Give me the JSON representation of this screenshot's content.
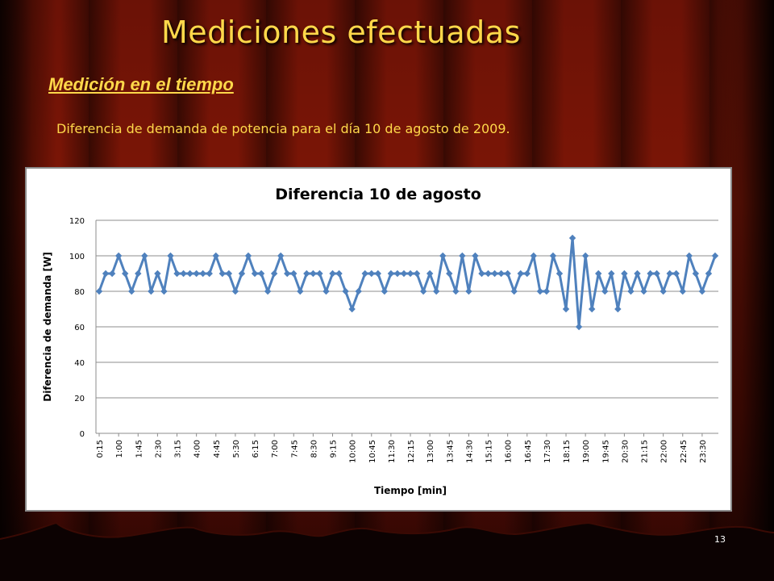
{
  "slide": {
    "title": "Mediciones efectuadas",
    "subtitle": "Medición en el tiempo",
    "description": "Diferencia de demanda de potencia para el día 10 de agosto de 2009.",
    "page_number": "13"
  },
  "colors": {
    "title_text": "#ffd84a",
    "series_line": "#4f81bd",
    "grid": "#8c8c8c"
  },
  "chart_data": {
    "type": "line",
    "title": "Diferencia 10 de agosto",
    "xlabel": "Tiempo [min]",
    "ylabel": "Diferencia de demanda [W]",
    "ylim": [
      0,
      120
    ],
    "yticks": [
      0,
      20,
      40,
      60,
      80,
      100,
      120
    ],
    "grid": true,
    "marker": "diamond",
    "x": [
      "0:15",
      "0:30",
      "0:45",
      "1:00",
      "1:15",
      "1:30",
      "1:45",
      "2:00",
      "2:15",
      "2:30",
      "2:45",
      "3:00",
      "3:15",
      "3:30",
      "3:45",
      "4:00",
      "4:15",
      "4:30",
      "4:45",
      "5:00",
      "5:15",
      "5:30",
      "5:45",
      "6:00",
      "6:15",
      "6:30",
      "6:45",
      "7:00",
      "7:15",
      "7:30",
      "7:45",
      "8:00",
      "8:15",
      "8:30",
      "8:45",
      "9:00",
      "9:15",
      "9:30",
      "9:45",
      "10:00",
      "10:15",
      "10:30",
      "10:45",
      "11:00",
      "11:15",
      "11:30",
      "11:45",
      "12:00",
      "12:15",
      "12:30",
      "12:45",
      "13:00",
      "13:15",
      "13:30",
      "13:45",
      "14:00",
      "14:15",
      "14:30",
      "14:45",
      "15:00",
      "15:15",
      "15:30",
      "15:45",
      "16:00",
      "16:15",
      "16:30",
      "16:45",
      "17:00",
      "17:15",
      "17:30",
      "17:45",
      "18:00",
      "18:15",
      "18:30",
      "18:45",
      "19:00",
      "19:15",
      "19:30",
      "19:45",
      "20:00",
      "20:15",
      "20:30",
      "20:45",
      "21:00",
      "21:15",
      "21:30",
      "21:45",
      "22:00",
      "22:15",
      "22:30",
      "22:45",
      "23:00",
      "23:15",
      "23:30",
      "23:45",
      "0:00"
    ],
    "tick_labels": [
      "0:15",
      "1:00",
      "1:45",
      "2:30",
      "3:15",
      "4:00",
      "4:45",
      "5:30",
      "6:15",
      "7:00",
      "7:45",
      "8:30",
      "9:15",
      "10:00",
      "10:45",
      "11:30",
      "12:15",
      "13:00",
      "13:45",
      "14:30",
      "15:15",
      "16:00",
      "16:45",
      "17:30",
      "18:15",
      "19:00",
      "19:45",
      "20:30",
      "21:15",
      "22:00",
      "22:45",
      "23:30"
    ],
    "series": [
      {
        "values": [
          80,
          90,
          90,
          100,
          90,
          80,
          90,
          100,
          80,
          90,
          80,
          100,
          90,
          90,
          90,
          90,
          90,
          90,
          100,
          90,
          90,
          80,
          90,
          100,
          90,
          90,
          80,
          90,
          100,
          90,
          90,
          80,
          90,
          90,
          90,
          80,
          90,
          90,
          80,
          70,
          80,
          90,
          90,
          90,
          80,
          90,
          90,
          90,
          90,
          90,
          80,
          90,
          80,
          100,
          90,
          80,
          100,
          80,
          100,
          90,
          90,
          90,
          90,
          90,
          80,
          90,
          90,
          100,
          80,
          80,
          100,
          90,
          70,
          110,
          60,
          100,
          70,
          90,
          80,
          90,
          70,
          90,
          80,
          90,
          80,
          90,
          90,
          80,
          90,
          90,
          80,
          100,
          90,
          80,
          90,
          100
        ]
      }
    ]
  }
}
